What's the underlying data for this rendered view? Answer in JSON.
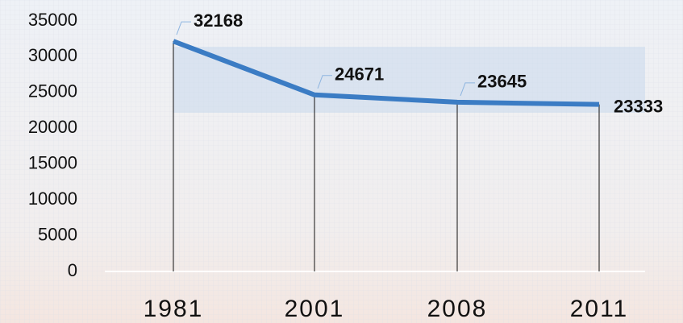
{
  "chart_data": {
    "type": "line",
    "categories": [
      "1981",
      "2001",
      "2008",
      "2011"
    ],
    "values": [
      32168,
      24671,
      23645,
      23333
    ],
    "color": "#3b7cc4",
    "ylim": [
      0,
      35000
    ],
    "yticks": [
      0,
      5000,
      10000,
      15000,
      20000,
      25000,
      30000,
      35000
    ],
    "grid": false
  }
}
